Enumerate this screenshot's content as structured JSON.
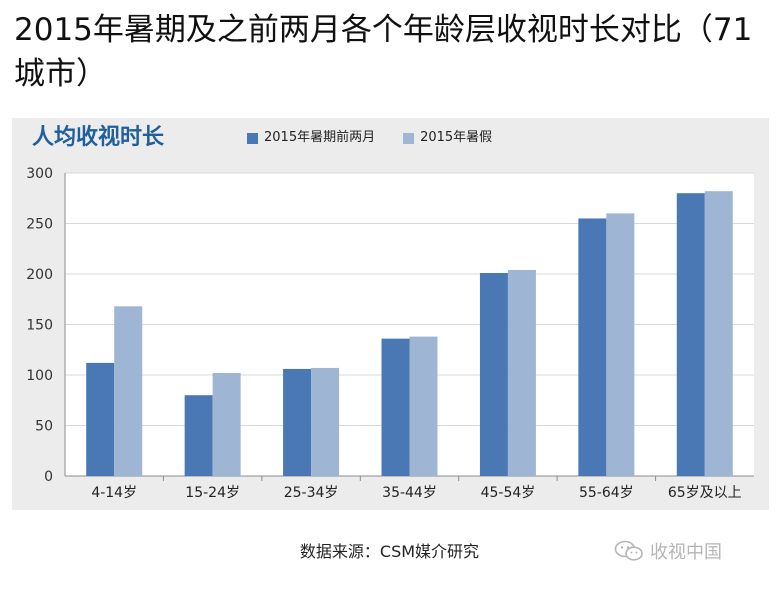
{
  "page": {
    "title": "2015年暑期及之前两月各个年龄层收视时长对比（71城市）",
    "source_text": "数据来源：CSM媒介研究",
    "watermark_text": "收视中国",
    "watermark_icon": "wechat-icon"
  },
  "chart_data": {
    "type": "bar",
    "title": "人均收视时长",
    "categories": [
      "4-14岁",
      "15-24岁",
      "25-34岁",
      "35-44岁",
      "45-54岁",
      "55-64岁",
      "65岁及以上"
    ],
    "series": [
      {
        "name": "2015年暑期前两月",
        "color": "#4a78b4",
        "values": [
          112,
          80,
          106,
          136,
          201,
          255,
          280
        ]
      },
      {
        "name": "2015年暑假",
        "color": "#9fb5d4",
        "values": [
          168,
          102,
          107,
          138,
          204,
          260,
          282
        ]
      }
    ],
    "ylim": [
      0,
      300
    ],
    "yticks": [
      0,
      50,
      100,
      150,
      200,
      250,
      300
    ],
    "grid": "horizontal",
    "legend_position": "top"
  }
}
